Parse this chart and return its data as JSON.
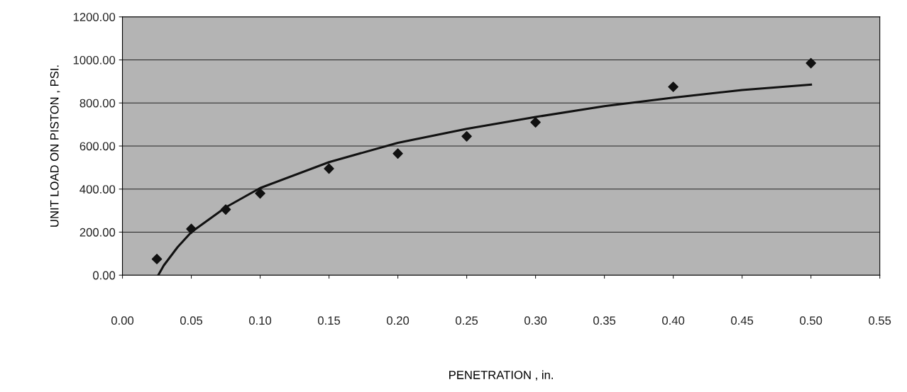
{
  "chart_data": {
    "type": "scatter",
    "xlabel": "PENETRATION , in.",
    "ylabel": "UNIT LOAD ON PISTON , PSI.",
    "x": [
      0.025,
      0.05,
      0.075,
      0.1,
      0.15,
      0.2,
      0.25,
      0.3,
      0.4,
      0.5
    ],
    "series": [
      {
        "color": "#111111",
        "marker": "diamond",
        "values": [
          75,
          215,
          305,
          380,
          495,
          565,
          645,
          710,
          875,
          985
        ]
      },
      {
        "type": "line",
        "color": "#111111",
        "marker": "none",
        "line_style": "solid",
        "x": [
          0.026,
          0.03,
          0.04,
          0.05,
          0.075,
          0.1,
          0.15,
          0.2,
          0.25,
          0.3,
          0.35,
          0.4,
          0.45,
          0.5
        ],
        "values": [
          0,
          45,
          130,
          200,
          315,
          405,
          525,
          615,
          680,
          735,
          785,
          825,
          860,
          885
        ]
      }
    ],
    "xlim": [
      0,
      0.55
    ],
    "ylim": [
      0,
      1200
    ],
    "xticks": [
      {
        "value": 0,
        "label": "0.00"
      },
      {
        "value": 0.05,
        "label": "0.05"
      },
      {
        "value": 0.1,
        "label": "0.10"
      },
      {
        "value": 0.15,
        "label": "0.15"
      },
      {
        "value": 0.2,
        "label": "0.20"
      },
      {
        "value": 0.25,
        "label": "0.25"
      },
      {
        "value": 0.3,
        "label": "0.30"
      },
      {
        "value": 0.35,
        "label": "0.35"
      },
      {
        "value": 0.4,
        "label": "0.40"
      },
      {
        "value": 0.45,
        "label": "0.45"
      },
      {
        "value": 0.5,
        "label": "0.50"
      },
      {
        "value": 0.55,
        "label": "0.55"
      }
    ],
    "yticks": [
      {
        "value": 0,
        "label": "0.00"
      },
      {
        "value": 200,
        "label": "200.00"
      },
      {
        "value": 400,
        "label": "400.00"
      },
      {
        "value": 600,
        "label": "600.00"
      },
      {
        "value": 800,
        "label": "800.00"
      },
      {
        "value": 1000,
        "label": "1000.00"
      },
      {
        "value": 1200,
        "label": "1200.00"
      }
    ],
    "grid": "y"
  }
}
